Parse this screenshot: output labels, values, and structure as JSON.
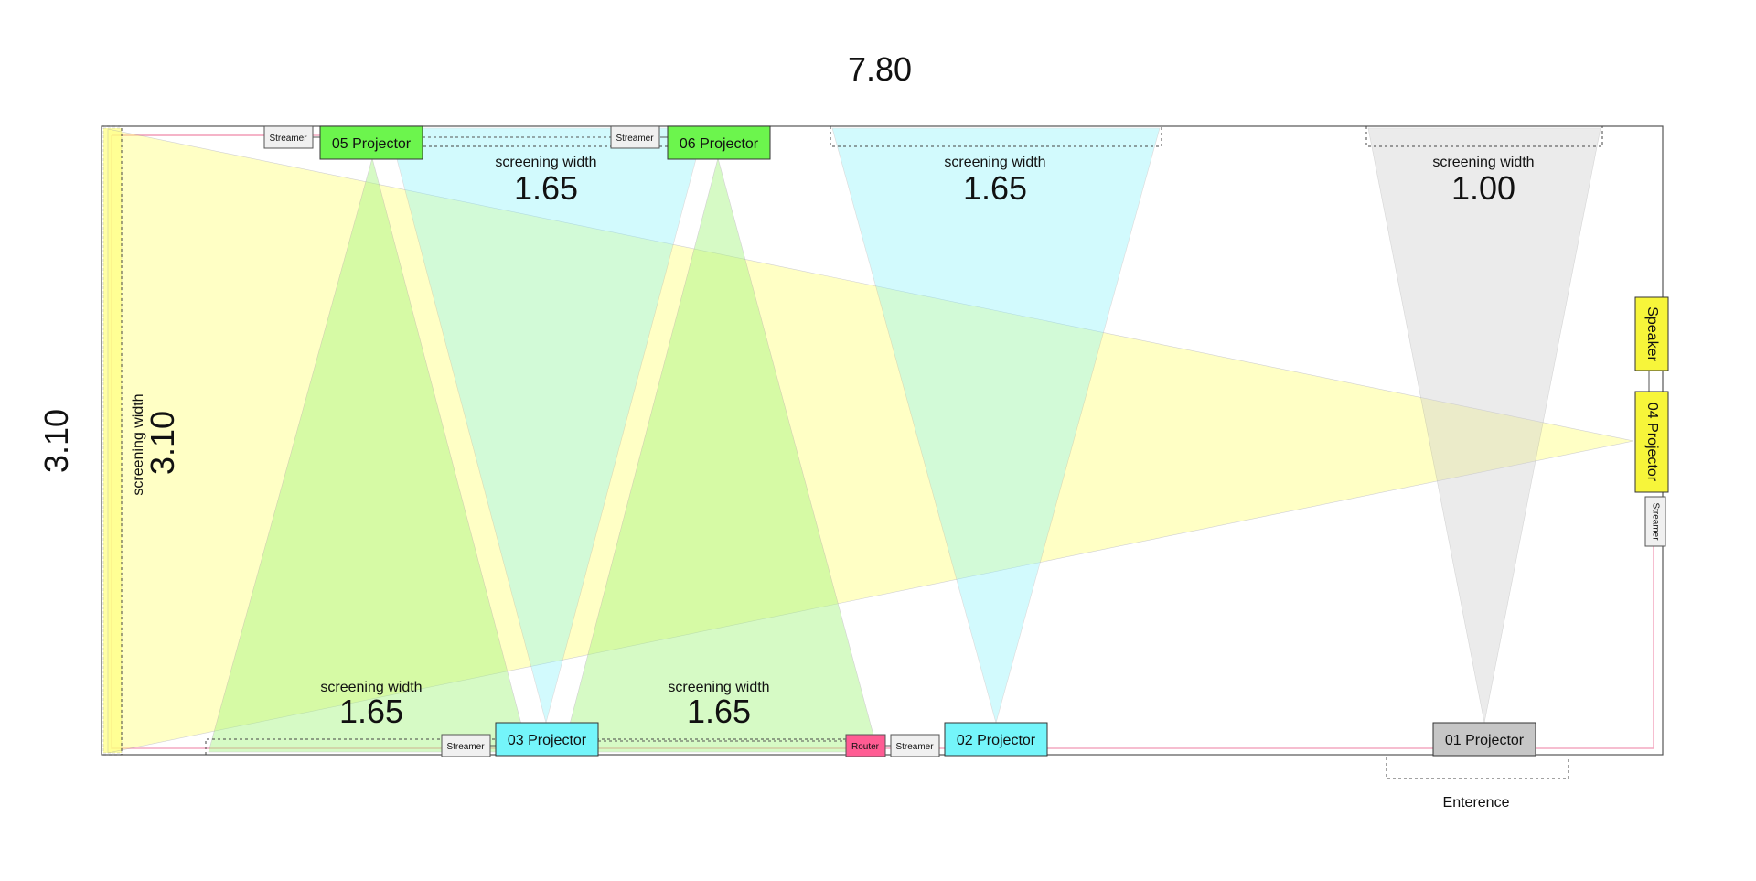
{
  "dimensions": {
    "room_width": "7.80",
    "room_height": "3.10"
  },
  "colors": {
    "yellow": "#ffff80",
    "green": "#a6f57f",
    "cyan": "#7ff2fb",
    "grey": "#dcdcdc",
    "pink": "#f4a9c0",
    "router": "#ff5c93",
    "projector_green": "#6cf54d",
    "projector_cyan": "#74f5fa",
    "projector_grey": "#c6c6c6",
    "projector_yellow": "#f7f53a"
  },
  "screens": {
    "top_left": {
      "caption": "screening width",
      "value": "1.65"
    },
    "top_mid": {
      "caption": "screening width",
      "value": "1.65"
    },
    "top_right": {
      "caption": "screening width",
      "value": "1.00"
    },
    "bottom_left": {
      "caption": "screening width",
      "value": "1.65"
    },
    "bottom_mid": {
      "caption": "screening width",
      "value": "1.65"
    },
    "left_wall": {
      "caption": "screening width",
      "value": "3.10"
    }
  },
  "devices": {
    "p01": "01 Projector",
    "p02": "02 Projector",
    "p03": "03 Projector",
    "p04": "04 Projector",
    "p05": "05 Projector",
    "p06": "06 Projector",
    "speaker": "Speaker",
    "router": "Router",
    "streamer": "Streamer"
  },
  "entrance": "Enterence"
}
